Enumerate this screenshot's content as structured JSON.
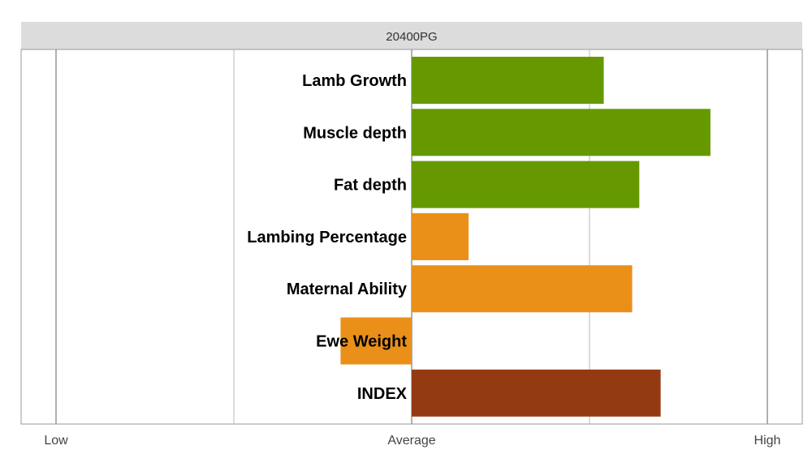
{
  "chart_data": {
    "type": "bar",
    "orientation": "horizontal",
    "title": "20400PG",
    "categories": [
      "Lamb Growth",
      "Muscle depth",
      "Fat depth",
      "Lambing Percentage",
      "Maternal Ability",
      "Ewe Weight",
      "INDEX"
    ],
    "values": [
      0.54,
      0.84,
      0.64,
      0.16,
      0.62,
      -0.2,
      0.7
    ],
    "colors": [
      "#669900",
      "#669900",
      "#669900",
      "#EA9019",
      "#EA9019",
      "#EA9019",
      "#943A12"
    ],
    "xlim": [
      -1,
      1
    ],
    "gridlines": [
      -1,
      -0.5,
      0,
      0.5,
      1
    ],
    "x_ticks": [
      {
        "value": -1,
        "label": "Low"
      },
      {
        "value": 0,
        "label": "Average"
      },
      {
        "value": 1,
        "label": "High"
      }
    ],
    "header_background": "#dcdcdc",
    "legend": "none"
  }
}
